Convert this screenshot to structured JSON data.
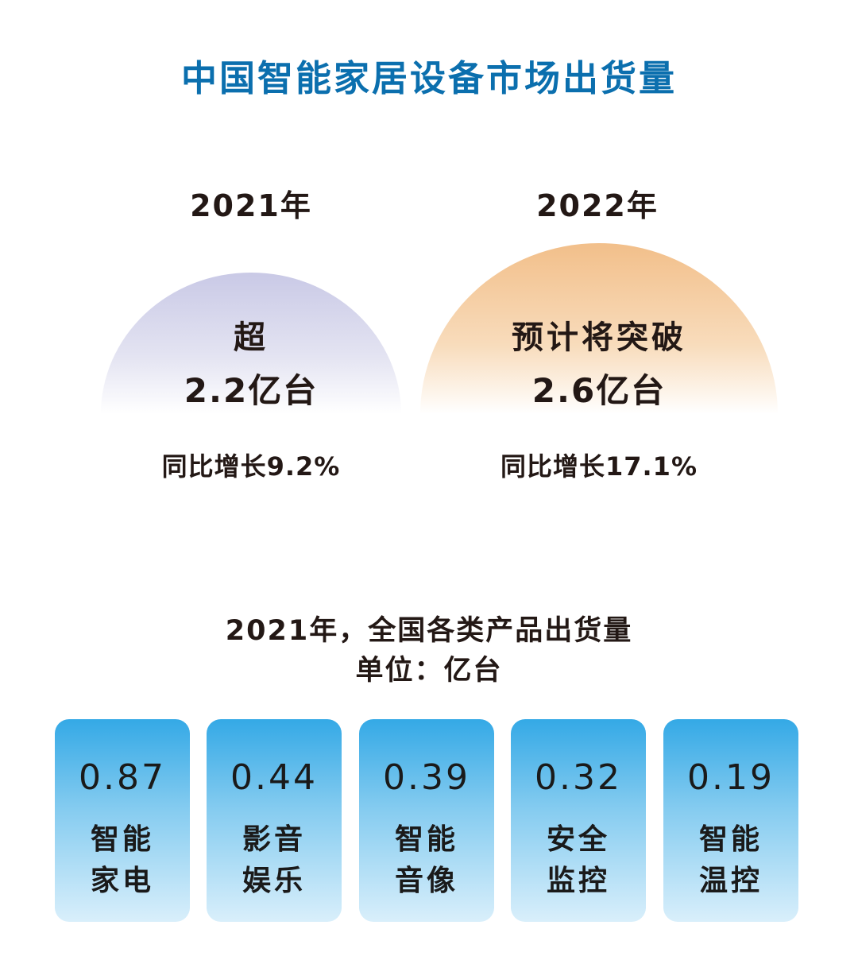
{
  "title": "中国智能家居设备市场出货量",
  "years": [
    {
      "year": "2021年",
      "prefix": "超",
      "value": "2.2亿台",
      "growth": "同比增长9.2%"
    },
    {
      "year": "2022年",
      "prefix": "预计将突破",
      "value": "2.6亿台",
      "growth": "同比增长17.1%"
    }
  ],
  "breakdown": {
    "title": "2021年，全国各类产品出货量",
    "unit": "单位：亿台"
  },
  "chart_data": {
    "type": "bar",
    "title": "2021年，全国各类产品出货量",
    "unit": "亿台",
    "categories": [
      "智能家电",
      "影音娱乐",
      "智能音像",
      "安全监控",
      "智能温控"
    ],
    "values": [
      0.87,
      0.44,
      0.39,
      0.32,
      0.19
    ],
    "labels": [
      {
        "value": "0.87",
        "line1": "智能",
        "line2": "家电"
      },
      {
        "value": "0.44",
        "line1": "影音",
        "line2": "娱乐"
      },
      {
        "value": "0.39",
        "line1": "智能",
        "line2": "音像"
      },
      {
        "value": "0.32",
        "line1": "安全",
        "line2": "监控"
      },
      {
        "value": "0.19",
        "line1": "智能",
        "line2": "温控"
      }
    ]
  },
  "colors": {
    "title": "#0b6fae",
    "dome_2021": "#c9c9e6",
    "dome_2022": "#f2bf8a",
    "card_top": "#34a9e6",
    "card_bottom": "#d9effb"
  }
}
